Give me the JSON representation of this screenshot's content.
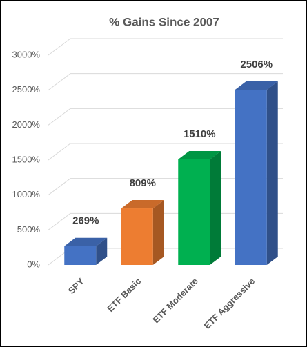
{
  "chart_data": {
    "type": "bar",
    "title": "% Gains Since 2007",
    "categories": [
      "SPY",
      "ETF Basic",
      "ETF Moderate",
      "ETF Aggressive"
    ],
    "values": [
      269,
      809,
      1510,
      2506
    ],
    "value_labels": [
      "269%",
      "809%",
      "1510%",
      "2506%"
    ],
    "colors": [
      "#4472c4",
      "#ed7d31",
      "#00b050",
      "#4472c4"
    ],
    "ylim": [
      0,
      3000
    ],
    "yticks": [
      {
        "value": 0,
        "label": "0%"
      },
      {
        "value": 500,
        "label": "500%"
      },
      {
        "value": 1000,
        "label": "1000%"
      },
      {
        "value": 1500,
        "label": "1500%"
      },
      {
        "value": 2000,
        "label": "2000%"
      },
      {
        "value": 2500,
        "label": "2500%"
      },
      {
        "value": 3000,
        "label": "3000%"
      }
    ],
    "grid": true
  }
}
